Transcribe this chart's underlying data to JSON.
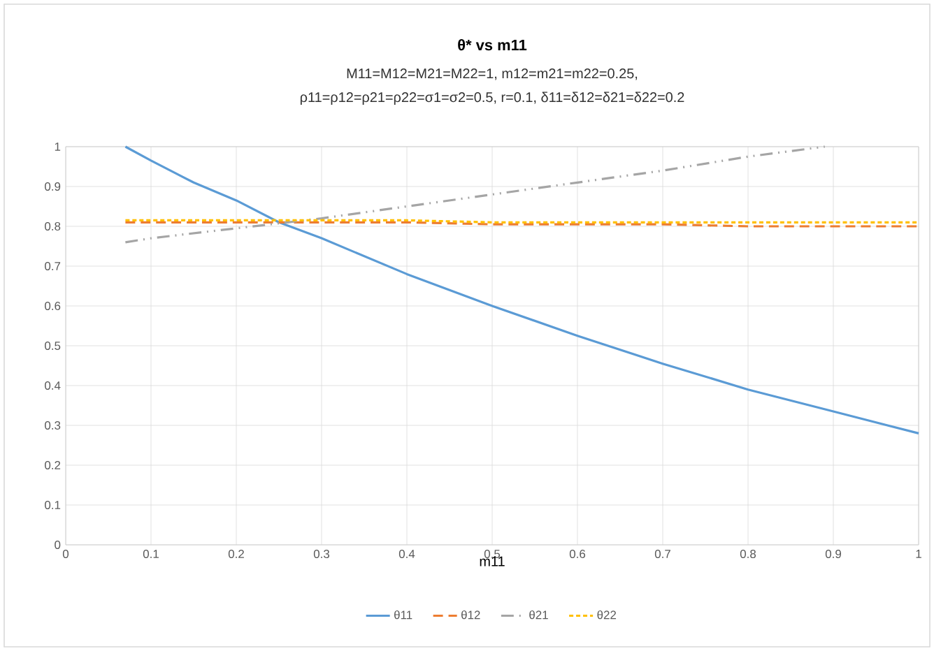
{
  "chart_data": {
    "type": "line",
    "title": "θ* vs m11",
    "subtitle": [
      "M11=M12=M21=M22=1,  m12=m21=m22=0.25,",
      "ρ11=ρ12=ρ21=ρ22=σ1=σ2=0.5,  r=0.1, δ11=δ12=δ21=δ22=0.2"
    ],
    "xlabel": "m11",
    "x": [
      0.07,
      0.1,
      0.15,
      0.2,
      0.25,
      0.3,
      0.4,
      0.5,
      0.6,
      0.7,
      0.8,
      0.9,
      1.0
    ],
    "series": [
      {
        "name": "θ11",
        "color": "#5b9bd5",
        "line_style": "solid",
        "values": [
          1.0,
          0.965,
          0.91,
          0.865,
          0.81,
          0.77,
          0.68,
          0.6,
          0.525,
          0.455,
          0.39,
          0.335,
          0.28
        ]
      },
      {
        "name": "θ12",
        "color": "#ed7d31",
        "line_style": "dashed",
        "values": [
          0.81,
          0.81,
          0.81,
          0.81,
          0.81,
          0.81,
          0.81,
          0.805,
          0.805,
          0.805,
          0.8,
          0.8,
          0.8
        ]
      },
      {
        "name": "θ21",
        "color": "#a5a5a5",
        "line_style": "dashdot",
        "x": [
          0.07,
          0.1,
          0.2,
          0.3,
          0.4,
          0.5,
          0.6,
          0.7,
          0.8,
          0.89
        ],
        "values": [
          0.76,
          0.77,
          0.795,
          0.82,
          0.85,
          0.88,
          0.91,
          0.94,
          0.975,
          1.0
        ]
      },
      {
        "name": "θ22",
        "color": "#ffc000",
        "line_style": "dotted",
        "values": [
          0.815,
          0.815,
          0.815,
          0.815,
          0.815,
          0.815,
          0.815,
          0.81,
          0.81,
          0.81,
          0.81,
          0.81,
          0.81
        ]
      }
    ],
    "xlim": [
      0,
      1
    ],
    "ylim": [
      0,
      1
    ],
    "xticks": [
      0,
      0.1,
      0.2,
      0.3,
      0.4,
      0.5,
      0.6,
      0.7,
      0.8,
      0.9,
      1
    ],
    "yticks": [
      0,
      0.1,
      0.2,
      0.3,
      0.4,
      0.5,
      0.6,
      0.7,
      0.8,
      0.9,
      1
    ],
    "grid": true,
    "legend": "bottom",
    "marker": "none"
  }
}
